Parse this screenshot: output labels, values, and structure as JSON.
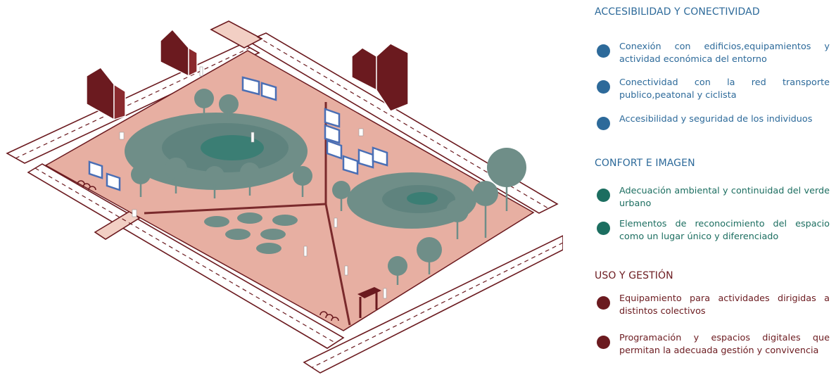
{
  "colors": {
    "blue": "#2d6a9a",
    "teal": "#1c6e60",
    "maroon": "#6b1a1f",
    "plaza": "#e7afa2",
    "path": "#7a2a2c",
    "trees": "#6f8e88"
  },
  "legend": {
    "sections": [
      {
        "title": "ACCESIBILIDAD Y CONECTIVIDAD",
        "color": "#2d6a9a",
        "items": [
          "Conexión con edificios,equipamientos y actividad económica del entorno",
          "Conectividad con la red transporte publico,peatonal y ciclista",
          "Accesibilidad y seguridad de los individuos"
        ]
      },
      {
        "title": "CONFORT E IMAGEN",
        "color": "#1c6e60",
        "items": [
          "Adecuación ambiental y continuidad del verde urbano",
          "Elementos de reconocimiento del espacio como un lugar único y diferenciado"
        ]
      },
      {
        "title": "USO Y GESTIÓN",
        "color": "#6b1a1f",
        "items": [
          "Equipamiento para actividades dirigidas a distintos colectivos",
          "Programación y espacios digitales que permitan la adecuada gestión y convivencia"
        ]
      }
    ]
  }
}
